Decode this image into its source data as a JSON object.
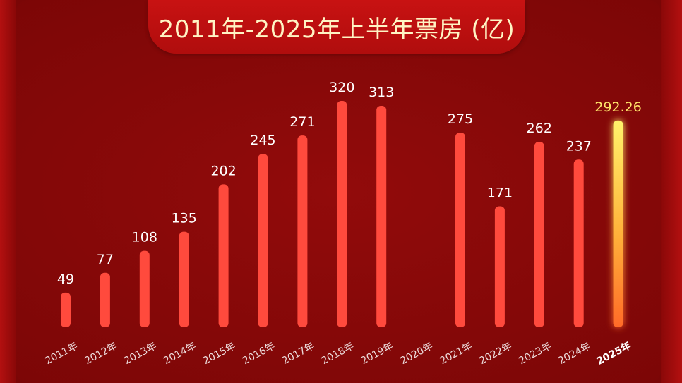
{
  "chart_data": {
    "type": "bar",
    "title": "2011年-2025年上半年票房 (亿)",
    "categories": [
      "2011年",
      "2012年",
      "2013年",
      "2014年",
      "2015年",
      "2016年",
      "2017年",
      "2018年",
      "2019年",
      "2020年",
      "2021年",
      "2022年",
      "2023年",
      "2024年",
      "2025年"
    ],
    "values": [
      49,
      77,
      108,
      135,
      202,
      245,
      271,
      320,
      313,
      null,
      275,
      171,
      262,
      237,
      292.26
    ],
    "value_labels": [
      "49",
      "77",
      "108",
      "135",
      "202",
      "245",
      "271",
      "320",
      "313",
      "",
      "275",
      "171",
      "262",
      "237",
      "292.26"
    ],
    "highlight_category": "2025年",
    "ylim": [
      0,
      320
    ],
    "grid": false,
    "legend": "none",
    "colors": {
      "bar": "#ff4a3d",
      "highlight_top": "#fff36b",
      "highlight_bottom": "#ff7a2a",
      "title_bg": "#c81212",
      "title_text": "#fff4c4",
      "highlight_label": "#ffe36a"
    }
  }
}
